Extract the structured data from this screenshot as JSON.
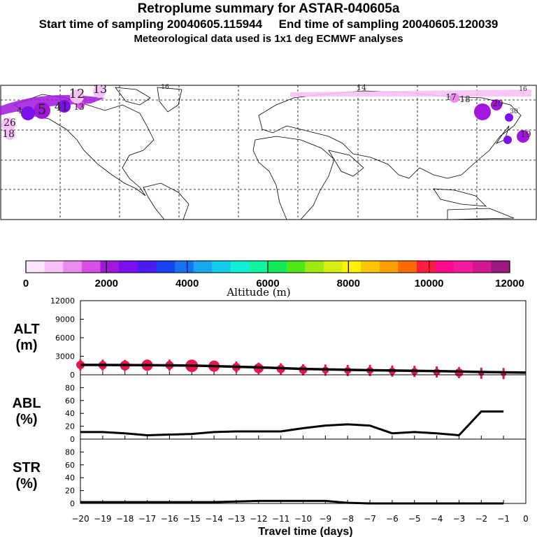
{
  "header": {
    "title": "Retroplume summary for ASTAR-040605a",
    "line2": "Start time of sampling 20040605.115944     End time of sampling 20040605.120039",
    "line3": "Meteorological data used is 1x1 deg ECMWF analyses"
  },
  "colors": {
    "altitude_scale": [
      "#fde6fd",
      "#f7c1f7",
      "#ee8bf0",
      "#d94ee6",
      "#a316de",
      "#7a10ec",
      "#4a1cf2",
      "#1743f0",
      "#1672f0",
      "#16a8ef",
      "#11cdea",
      "#10eed6",
      "#12f5a0",
      "#10e958",
      "#4fe817",
      "#9eea12",
      "#d8ee10",
      "#fff200",
      "#ffc600",
      "#ff9e00",
      "#ff6a00",
      "#ff1c40",
      "#ff0a8c",
      "#f41aa0",
      "#d2178f",
      "#9a1b7d"
    ],
    "marker": "#e8164f",
    "line": "#000000"
  },
  "map": {
    "plume_labels": [
      "12",
      "13",
      "16",
      "14",
      "17",
      "18",
      "16",
      "19",
      "26",
      "18",
      "41",
      "13",
      "4",
      "5",
      "20",
      "30"
    ]
  },
  "chart_data": [
    {
      "type": "scatter",
      "name": "ALT",
      "ylabel": "ALT\n(m)",
      "ylabel_top": "ALT",
      "ylabel_bottom": "(m)",
      "ylim": [
        0,
        12000
      ],
      "yticks": [
        "0",
        "3000",
        "6000",
        "9000",
        "12000"
      ],
      "x": [
        -20,
        -19,
        -18,
        -17,
        -16,
        -15,
        -14,
        -13,
        -12,
        -11,
        -10,
        -9,
        -8,
        -7,
        -6,
        -5,
        -4,
        -3,
        -2,
        -1
      ],
      "values": [
        1600,
        1550,
        1500,
        1550,
        1550,
        1450,
        1400,
        1250,
        1050,
        950,
        800,
        750,
        700,
        700,
        600,
        550,
        450,
        350,
        250,
        200
      ],
      "line": {
        "x": [
          -20,
          -17,
          -15,
          -12,
          -10,
          -8,
          -6,
          -4,
          -2,
          0
        ],
        "y": [
          1600,
          1550,
          1500,
          1200,
          950,
          800,
          700,
          600,
          450,
          350
        ]
      }
    },
    {
      "type": "line",
      "name": "ABL",
      "ylabel_top": "ABL",
      "ylabel_bottom": "(%)",
      "ylim": [
        0,
        100
      ],
      "yticks": [
        "0",
        "20",
        "40",
        "60",
        "80"
      ],
      "x": [
        -20,
        -19,
        -18,
        -17,
        -16,
        -15,
        -14,
        -13,
        -12,
        -11,
        -10,
        -9,
        -8,
        -7,
        -6,
        -5,
        -4,
        -3,
        -2,
        -1
      ],
      "values": [
        11,
        11,
        9,
        6,
        7,
        8,
        11,
        12,
        12,
        12,
        17,
        21,
        23,
        21,
        9,
        11,
        9,
        6,
        43,
        43
      ]
    },
    {
      "type": "line",
      "name": "STR",
      "ylabel_top": "STR",
      "ylabel_bottom": "(%)",
      "ylim": [
        0,
        100
      ],
      "yticks": [
        "0",
        "20",
        "40",
        "60",
        "80"
      ],
      "x": [
        -20,
        -19,
        -18,
        -17,
        -16,
        -15,
        -14,
        -13,
        -12,
        -11,
        -10,
        -9,
        -8,
        -7,
        -6,
        -5,
        -4,
        -3,
        -2,
        -1
      ],
      "values": [
        2,
        2,
        2,
        2,
        2,
        2,
        2,
        3,
        4,
        4,
        4,
        4,
        1,
        0,
        0,
        0,
        0,
        0,
        0,
        0
      ]
    }
  ],
  "colorbar": {
    "ticks": [
      "0",
      "2000",
      "4000",
      "6000",
      "8000",
      "10000",
      "12000"
    ],
    "label": "Altitude (m)"
  },
  "xaxis": {
    "ticks": [
      "−20",
      "−19",
      "−18",
      "−17",
      "−16",
      "−15",
      "−14",
      "−13",
      "−12",
      "−11",
      "−10",
      "−9",
      "−8",
      "−7",
      "−6",
      "−5",
      "−4",
      "−3",
      "−2",
      "−1",
      "0"
    ],
    "label": "Travel time (days)"
  }
}
